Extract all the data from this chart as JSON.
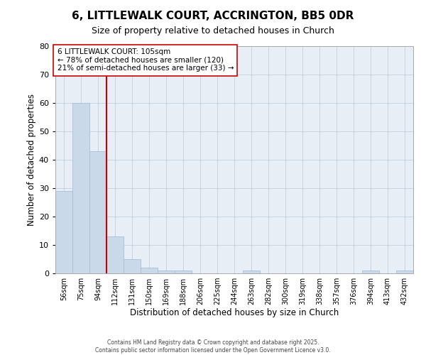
{
  "title": "6, LITTLEWALK COURT, ACCRINGTON, BB5 0DR",
  "subtitle": "Size of property relative to detached houses in Church",
  "xlabel": "Distribution of detached houses by size in Church",
  "ylabel": "Number of detached properties",
  "bar_color": "#c9d9ea",
  "bar_edge_color": "#a8c0d8",
  "background_color": "#e8eef6",
  "categories": [
    "56sqm",
    "75sqm",
    "94sqm",
    "112sqm",
    "131sqm",
    "150sqm",
    "169sqm",
    "188sqm",
    "206sqm",
    "225sqm",
    "244sqm",
    "263sqm",
    "282sqm",
    "300sqm",
    "319sqm",
    "338sqm",
    "357sqm",
    "376sqm",
    "394sqm",
    "413sqm",
    "432sqm"
  ],
  "values": [
    29,
    60,
    43,
    13,
    5,
    2,
    1,
    1,
    0,
    0,
    0,
    1,
    0,
    0,
    0,
    0,
    0,
    0,
    1,
    0,
    1
  ],
  "ylim": [
    0,
    80
  ],
  "yticks": [
    0,
    10,
    20,
    30,
    40,
    50,
    60,
    70,
    80
  ],
  "vline_color": "#cc0000",
  "vline_x_idx": 2.5,
  "annotation_text": "6 LITTLEWALK COURT: 105sqm\n← 78% of detached houses are smaller (120)\n21% of semi-detached houses are larger (33) →",
  "annotation_box_color": "#ffffff",
  "annotation_box_edge": "#cc0000",
  "footer_line1": "Contains HM Land Registry data © Crown copyright and database right 2025.",
  "footer_line2": "Contains public sector information licensed under the Open Government Licence v3.0."
}
